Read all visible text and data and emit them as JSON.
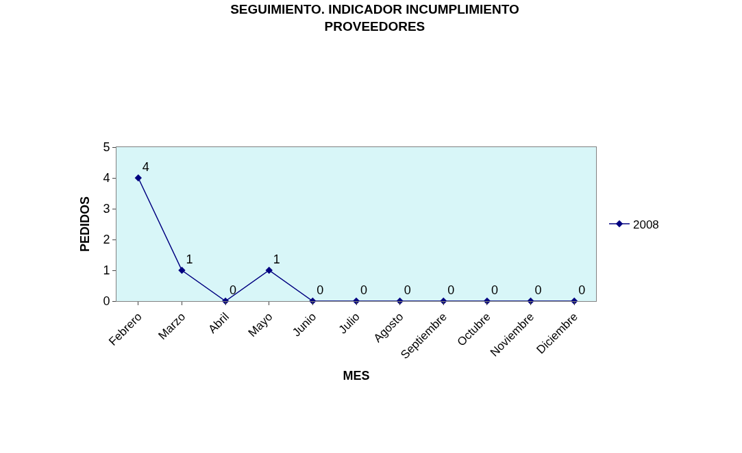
{
  "chart_data": {
    "type": "line",
    "title": "SEGUIMIENTO. INDICADOR INCUMPLIMIENTO\nPROVEEDORES",
    "xlabel": "MES",
    "ylabel": "PEDIDOS",
    "categories": [
      "Febrero",
      "Marzo",
      "Abril",
      "Mayo",
      "Junio",
      "Julio",
      "Agosto",
      "Septiembre",
      "Octubre",
      "Noviembre",
      "Diciembre"
    ],
    "series": [
      {
        "name": "2008",
        "color": "#000080",
        "values": [
          4,
          1,
          0,
          1,
          0,
          0,
          0,
          0,
          0,
          0,
          0
        ]
      }
    ],
    "ylim": [
      0,
      5
    ],
    "yticks": [
      0,
      1,
      2,
      3,
      4,
      5
    ],
    "data_labels": true,
    "legend": "right",
    "marker": "diamond",
    "line_style": "solid"
  }
}
